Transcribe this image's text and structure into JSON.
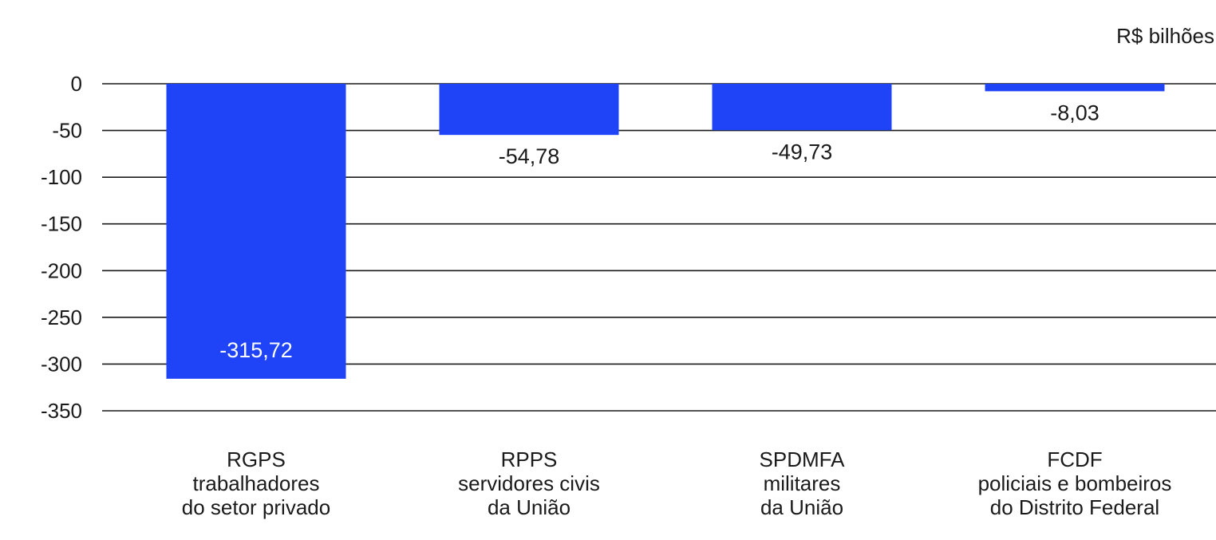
{
  "chart_data": {
    "type": "bar",
    "unit_label": "R$ bilhões",
    "categories": [
      [
        "RGPS",
        "trabalhadores",
        "do setor privado"
      ],
      [
        "RPPS",
        "servidores civis",
        "da União"
      ],
      [
        "SPDMFA",
        "militares",
        "da União"
      ],
      [
        "FCDF",
        "policiais e bombeiros",
        "do Distrito Federal"
      ]
    ],
    "values": [
      -315.72,
      -54.78,
      -49.73,
      -8.03
    ],
    "value_labels": [
      "-315,72",
      "-54,78",
      "-49,73",
      "-8,03"
    ],
    "yticks": [
      0,
      -50,
      -100,
      -150,
      -200,
      -250,
      -300,
      -350
    ],
    "ytick_labels": [
      "0",
      "-50",
      "-100",
      "-150",
      "-200",
      "-250",
      "-300",
      "-350"
    ],
    "ylim": [
      -350,
      0
    ],
    "grid": true,
    "bar_color": "#1f44f8",
    "grid_color": "#1a1a1a"
  }
}
